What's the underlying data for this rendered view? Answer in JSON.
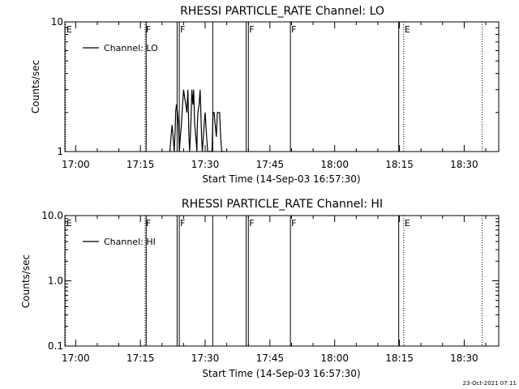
{
  "timestamp": "23-Oct-2021 07:11",
  "colors": {
    "background": "#ffffff",
    "foreground": "#000000"
  },
  "chart_data": [
    {
      "type": "line",
      "title": "RHESSI PARTICLE_RATE Channel: LO",
      "xlabel": "Start Time (14-Sep-03 16:57:30)",
      "ylabel": "Counts/sec",
      "y_scale": "log",
      "ylim": [
        1,
        10
      ],
      "y_ticks": [
        {
          "value": 1,
          "label": "1"
        },
        {
          "value": 10,
          "label": "10"
        }
      ],
      "xlim": [
        "16:57:30",
        "18:38:00"
      ],
      "x_ticks": [
        "17:00",
        "17:15",
        "17:30",
        "17:45",
        "18:00",
        "18:15",
        "18:30"
      ],
      "legend": {
        "label": "Channel: LO",
        "placement": "top-left"
      },
      "grid": false,
      "series": [
        {
          "name": "Channel: LO",
          "x": [
            "17:21:40",
            "17:21:50",
            "17:22:05",
            "17:22:20",
            "17:22:35",
            "17:22:50",
            "17:23:05",
            "17:23:10",
            "17:23:20",
            "17:23:35",
            "17:23:50",
            "17:24:00",
            "17:24:15",
            "17:24:30",
            "17:24:45",
            "17:25:00",
            "17:25:15",
            "17:25:30",
            "17:25:45",
            "17:26:00",
            "17:26:15",
            "17:26:25",
            "17:26:40",
            "17:26:55",
            "17:27:10",
            "17:27:20",
            "17:27:35",
            "17:27:50",
            "17:28:05",
            "17:28:10",
            "17:28:20",
            "17:28:35",
            "17:28:50",
            "17:29:00",
            "17:29:10",
            "17:29:20",
            "17:29:35",
            "17:29:45",
            "17:30:00",
            "17:30:10",
            "17:30:20",
            "17:30:35",
            "17:30:50",
            "17:31:05",
            "17:31:20",
            "17:31:35",
            "17:31:50",
            "17:32:05",
            "17:32:20",
            "17:32:35",
            "17:32:50",
            "17:33:05",
            "17:33:20",
            "17:33:35",
            "17:33:50",
            "17:34:05",
            "17:34:20",
            "17:34:35"
          ],
          "values": [
            1,
            1,
            1.3,
            1.6,
            1.3,
            1,
            1.6,
            2,
            2.3,
            2,
            1.6,
            1,
            1.3,
            1.6,
            2.3,
            3,
            2.6,
            2.3,
            2,
            3,
            1.3,
            1,
            1.6,
            3,
            2.3,
            3,
            1.6,
            1.3,
            1,
            1.6,
            2,
            2.3,
            3,
            2,
            1.3,
            1,
            1.3,
            1.6,
            2,
            1.6,
            1.3,
            1,
            1,
            1,
            1,
            1,
            2,
            2,
            1.6,
            1.3,
            2,
            2,
            2,
            1.3,
            1,
            1,
            1,
            1
          ]
        }
      ],
      "flags": [
        {
          "time": "16:57:40",
          "style": "dotted",
          "label": "E"
        },
        {
          "time": "17:16:05",
          "style": "dotted",
          "label": "F"
        },
        {
          "time": "17:16:20",
          "style": "solid",
          "label": ""
        },
        {
          "time": "17:23:30",
          "style": "solid",
          "label": ""
        },
        {
          "time": "17:24:00",
          "style": "solid",
          "label": "F"
        },
        {
          "time": "17:31:45",
          "style": "solid",
          "label": ""
        },
        {
          "time": "17:39:30",
          "style": "solid",
          "label": ""
        },
        {
          "time": "17:40:00",
          "style": "solid",
          "label": "F"
        },
        {
          "time": "17:49:45",
          "style": "solid",
          "label": "F"
        },
        {
          "time": "18:14:50",
          "style": "solid",
          "label": ""
        },
        {
          "time": "18:16:00",
          "style": "dotted",
          "label": "E"
        },
        {
          "time": "18:34:10",
          "style": "dotted",
          "label": ""
        }
      ]
    },
    {
      "type": "line",
      "title": "RHESSI PARTICLE_RATE Channel: HI",
      "xlabel": "Start Time (14-Sep-03 16:57:30)",
      "ylabel": "Counts/sec",
      "y_scale": "log",
      "ylim": [
        0.1,
        10
      ],
      "y_ticks": [
        {
          "value": 0.1,
          "label": "0.1"
        },
        {
          "value": 1,
          "label": "1.0"
        },
        {
          "value": 10,
          "label": "10.0"
        }
      ],
      "xlim": [
        "16:57:30",
        "18:38:00"
      ],
      "x_ticks": [
        "17:00",
        "17:15",
        "17:30",
        "17:45",
        "18:00",
        "18:15",
        "18:30"
      ],
      "legend": {
        "label": "Channel: HI",
        "placement": "top-left"
      },
      "grid": false,
      "series": [
        {
          "name": "Channel: HI",
          "x": [],
          "values": []
        }
      ],
      "flags": [
        {
          "time": "16:57:40",
          "style": "dotted",
          "label": "E"
        },
        {
          "time": "17:16:05",
          "style": "dotted",
          "label": "F"
        },
        {
          "time": "17:16:20",
          "style": "solid",
          "label": ""
        },
        {
          "time": "17:23:30",
          "style": "solid",
          "label": ""
        },
        {
          "time": "17:24:00",
          "style": "solid",
          "label": "F"
        },
        {
          "time": "17:31:45",
          "style": "solid",
          "label": ""
        },
        {
          "time": "17:39:30",
          "style": "solid",
          "label": ""
        },
        {
          "time": "17:40:00",
          "style": "solid",
          "label": "F"
        },
        {
          "time": "17:49:45",
          "style": "solid",
          "label": "F"
        },
        {
          "time": "18:14:50",
          "style": "solid",
          "label": ""
        },
        {
          "time": "18:16:00",
          "style": "dotted",
          "label": "E"
        },
        {
          "time": "18:34:10",
          "style": "dotted",
          "label": ""
        }
      ]
    }
  ]
}
